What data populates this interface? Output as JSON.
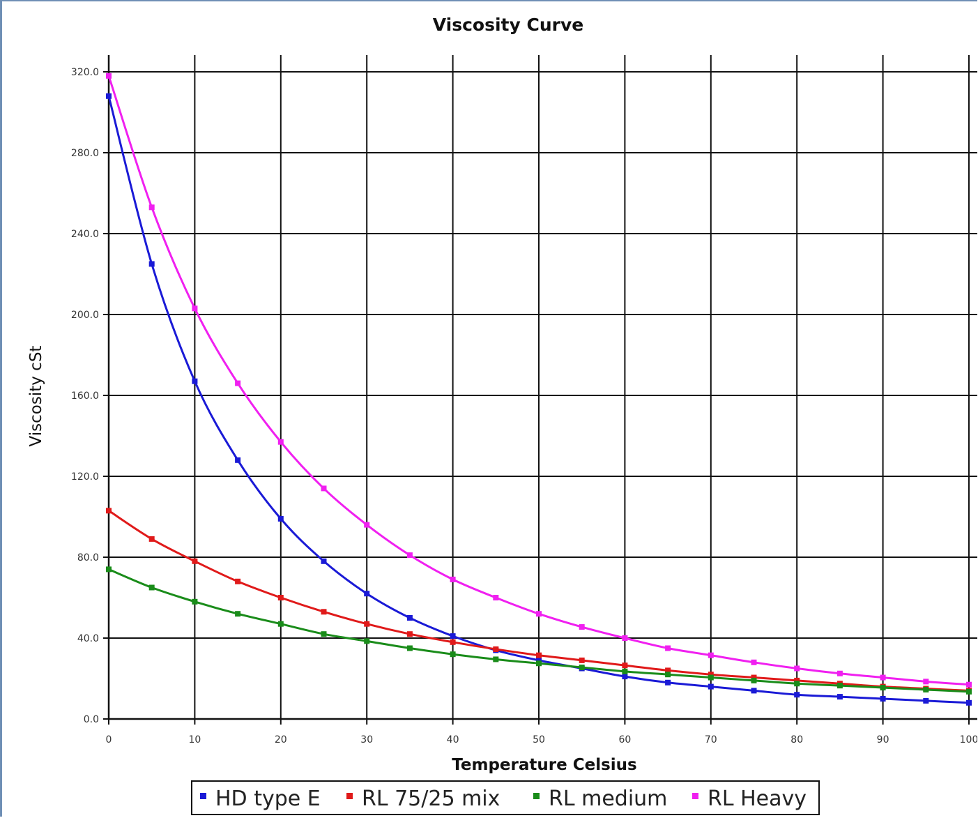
{
  "chart_data": {
    "type": "line",
    "title": "Viscosity Curve",
    "xlabel": "Temperature Celsius",
    "ylabel": "Viscosity cSt",
    "xlim": [
      0,
      100
    ],
    "ylim": [
      0,
      320
    ],
    "grid": true,
    "legend_position": "bottom",
    "x_ticks": [
      "0",
      "10",
      "20",
      "30",
      "40",
      "50",
      "60",
      "70",
      "80",
      "90",
      "100"
    ],
    "y_ticks": [
      "0.0",
      "40.0",
      "80.0",
      "120.0",
      "160.0",
      "200.0",
      "240.0",
      "280.0",
      "320.0"
    ],
    "x": [
      0,
      5,
      10,
      15,
      20,
      25,
      30,
      35,
      40,
      45,
      50,
      55,
      60,
      65,
      70,
      75,
      80,
      85,
      90,
      95,
      100
    ],
    "series": [
      {
        "name": "HD type E",
        "color": "#1a1ad6",
        "values": [
          308,
          225,
          167,
          128,
          99,
          78,
          62,
          50,
          41,
          34,
          29,
          25,
          21,
          18,
          16,
          14,
          12,
          11,
          10,
          9,
          8
        ]
      },
      {
        "name": "RL 75/25 mix",
        "color": "#e01a1a",
        "values": [
          103,
          89,
          78,
          68,
          60,
          53,
          47,
          42,
          38,
          34.5,
          31.5,
          29,
          26.5,
          24,
          22,
          20.5,
          19,
          17.5,
          16,
          15,
          14
        ]
      },
      {
        "name": "RL medium",
        "color": "#1a8c1a",
        "values": [
          74,
          65,
          58,
          52,
          47,
          42,
          38.5,
          35,
          32,
          29.5,
          27.5,
          25.5,
          23.5,
          22,
          20.5,
          19,
          17.5,
          16.5,
          15.5,
          14.5,
          13.5
        ]
      },
      {
        "name": "RL Heavy",
        "color": "#f020f0",
        "values": [
          318,
          253,
          203,
          166,
          137,
          114,
          96,
          81,
          69,
          60,
          52,
          45.5,
          40,
          35,
          31.5,
          28,
          25,
          22.5,
          20.5,
          18.5,
          17
        ]
      }
    ]
  }
}
